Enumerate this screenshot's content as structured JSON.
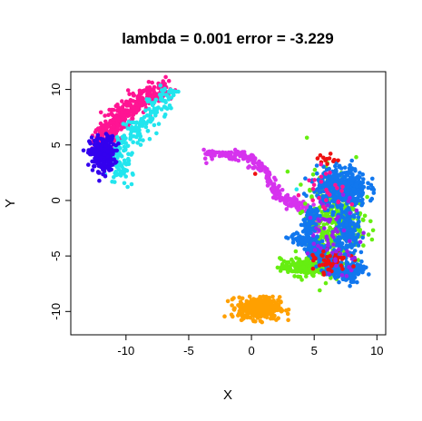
{
  "chart_data": {
    "type": "scatter",
    "title": "lambda = 0.001 error = -3.229",
    "xlabel": "X",
    "ylabel": "Y",
    "xlim": [
      -14.4,
      10.7
    ],
    "ylim": [
      -12.1,
      11.6
    ],
    "x_ticks": [
      -10,
      -5,
      0,
      5,
      10
    ],
    "y_ticks": [
      -10,
      -5,
      0,
      5,
      10
    ],
    "x_tick_labels": [
      "-10",
      "-5",
      "0",
      "5",
      "10"
    ],
    "y_tick_labels": [
      "-10",
      "-5",
      "0",
      "5",
      "10"
    ],
    "grid": false,
    "legend": "none",
    "clusters": [
      {
        "color": "#ff1493",
        "shape": "band",
        "n": 380,
        "spread": 0.45,
        "path": [
          [
            -7.0,
            10.2
          ],
          [
            -8.0,
            9.6
          ],
          [
            -9.0,
            8.8
          ],
          [
            -10.0,
            8.0
          ],
          [
            -10.8,
            7.0
          ],
          [
            -11.4,
            6.2
          ],
          [
            -12.0,
            5.2
          ]
        ]
      },
      {
        "color": "#22e5ee",
        "shape": "band",
        "n": 220,
        "spread": 0.5,
        "path": [
          [
            -6.4,
            9.8
          ],
          [
            -7.6,
            8.4
          ],
          [
            -8.6,
            7.0
          ],
          [
            -9.6,
            6.0
          ],
          [
            -10.4,
            4.8
          ],
          [
            -10.8,
            3.4
          ],
          [
            -10.4,
            2.2
          ]
        ]
      },
      {
        "color": "#3300ee",
        "shape": "blob",
        "n": 260,
        "cx": -11.9,
        "cy": 4.2,
        "rx": 0.9,
        "ry": 1.4
      },
      {
        "color": "#d633ee",
        "shape": "band",
        "n": 320,
        "spread": 0.22,
        "path": [
          [
            -3.6,
            4.2
          ],
          [
            -2.0,
            4.1
          ],
          [
            -0.6,
            3.9
          ],
          [
            0.6,
            3.2
          ],
          [
            1.4,
            2.2
          ],
          [
            1.9,
            0.8
          ],
          [
            2.6,
            0.0
          ],
          [
            3.6,
            -0.3
          ],
          [
            4.6,
            -0.9
          ],
          [
            5.0,
            -1.8
          ],
          [
            5.2,
            -3.0
          ]
        ]
      },
      {
        "color": "#ffa000",
        "shape": "blob",
        "n": 380,
        "cx": 0.6,
        "cy": -9.7,
        "rx": 1.5,
        "ry": 0.9
      },
      {
        "color": "#66ee11",
        "shape": "blob",
        "n": 380,
        "cx": 6.6,
        "cy": -1.8,
        "rx": 2.0,
        "ry": 3.8
      },
      {
        "color": "#66ee11",
        "shape": "blob",
        "n": 220,
        "cx": 4.2,
        "cy": -6.0,
        "rx": 1.7,
        "ry": 0.7
      },
      {
        "color": "#1177ee",
        "shape": "blob",
        "n": 420,
        "cx": 7.2,
        "cy": 1.2,
        "rx": 1.8,
        "ry": 1.6
      },
      {
        "color": "#1177ee",
        "shape": "band",
        "n": 260,
        "spread": 0.28,
        "path": [
          [
            5.0,
            -0.8
          ],
          [
            4.6,
            -2.4
          ],
          [
            4.8,
            -4.2
          ],
          [
            5.6,
            -5.6
          ],
          [
            6.6,
            -6.4
          ],
          [
            7.8,
            -6.4
          ],
          [
            9.0,
            -5.9
          ]
        ]
      },
      {
        "color": "#1177ee",
        "shape": "band",
        "n": 200,
        "spread": 0.25,
        "path": [
          [
            3.4,
            -3.4
          ],
          [
            4.6,
            -3.8
          ],
          [
            5.6,
            -4.6
          ],
          [
            6.4,
            -5.6
          ],
          [
            7.2,
            -6.6
          ],
          [
            8.2,
            -7.2
          ]
        ]
      },
      {
        "color": "#1177ee",
        "shape": "blob",
        "n": 160,
        "cx": 7.6,
        "cy": -3.0,
        "rx": 0.9,
        "ry": 2.6
      },
      {
        "color": "#ee1111",
        "shape": "blob",
        "n": 45,
        "cx": 6.4,
        "cy": -5.6,
        "rx": 1.3,
        "ry": 0.9
      },
      {
        "color": "#ee1111",
        "shape": "blob",
        "n": 12,
        "cx": 6.0,
        "cy": 3.6,
        "rx": 0.8,
        "ry": 0.5
      },
      {
        "color": "#9922ee",
        "shape": "blob",
        "n": 60,
        "cx": 6.6,
        "cy": -3.0,
        "rx": 2.2,
        "ry": 3.0
      },
      {
        "color": "#ff1493",
        "shape": "blob",
        "n": 25,
        "cx": 6.0,
        "cy": 1.2,
        "rx": 1.6,
        "ry": 2.0
      }
    ],
    "outliers": [
      {
        "x": 0.3,
        "y": 2.4,
        "color": "#ee1111"
      },
      {
        "x": 3.6,
        "y": 1.0,
        "color": "#22e5ee"
      },
      {
        "x": 4.2,
        "y": 0.6,
        "color": "#1177ee"
      }
    ]
  }
}
